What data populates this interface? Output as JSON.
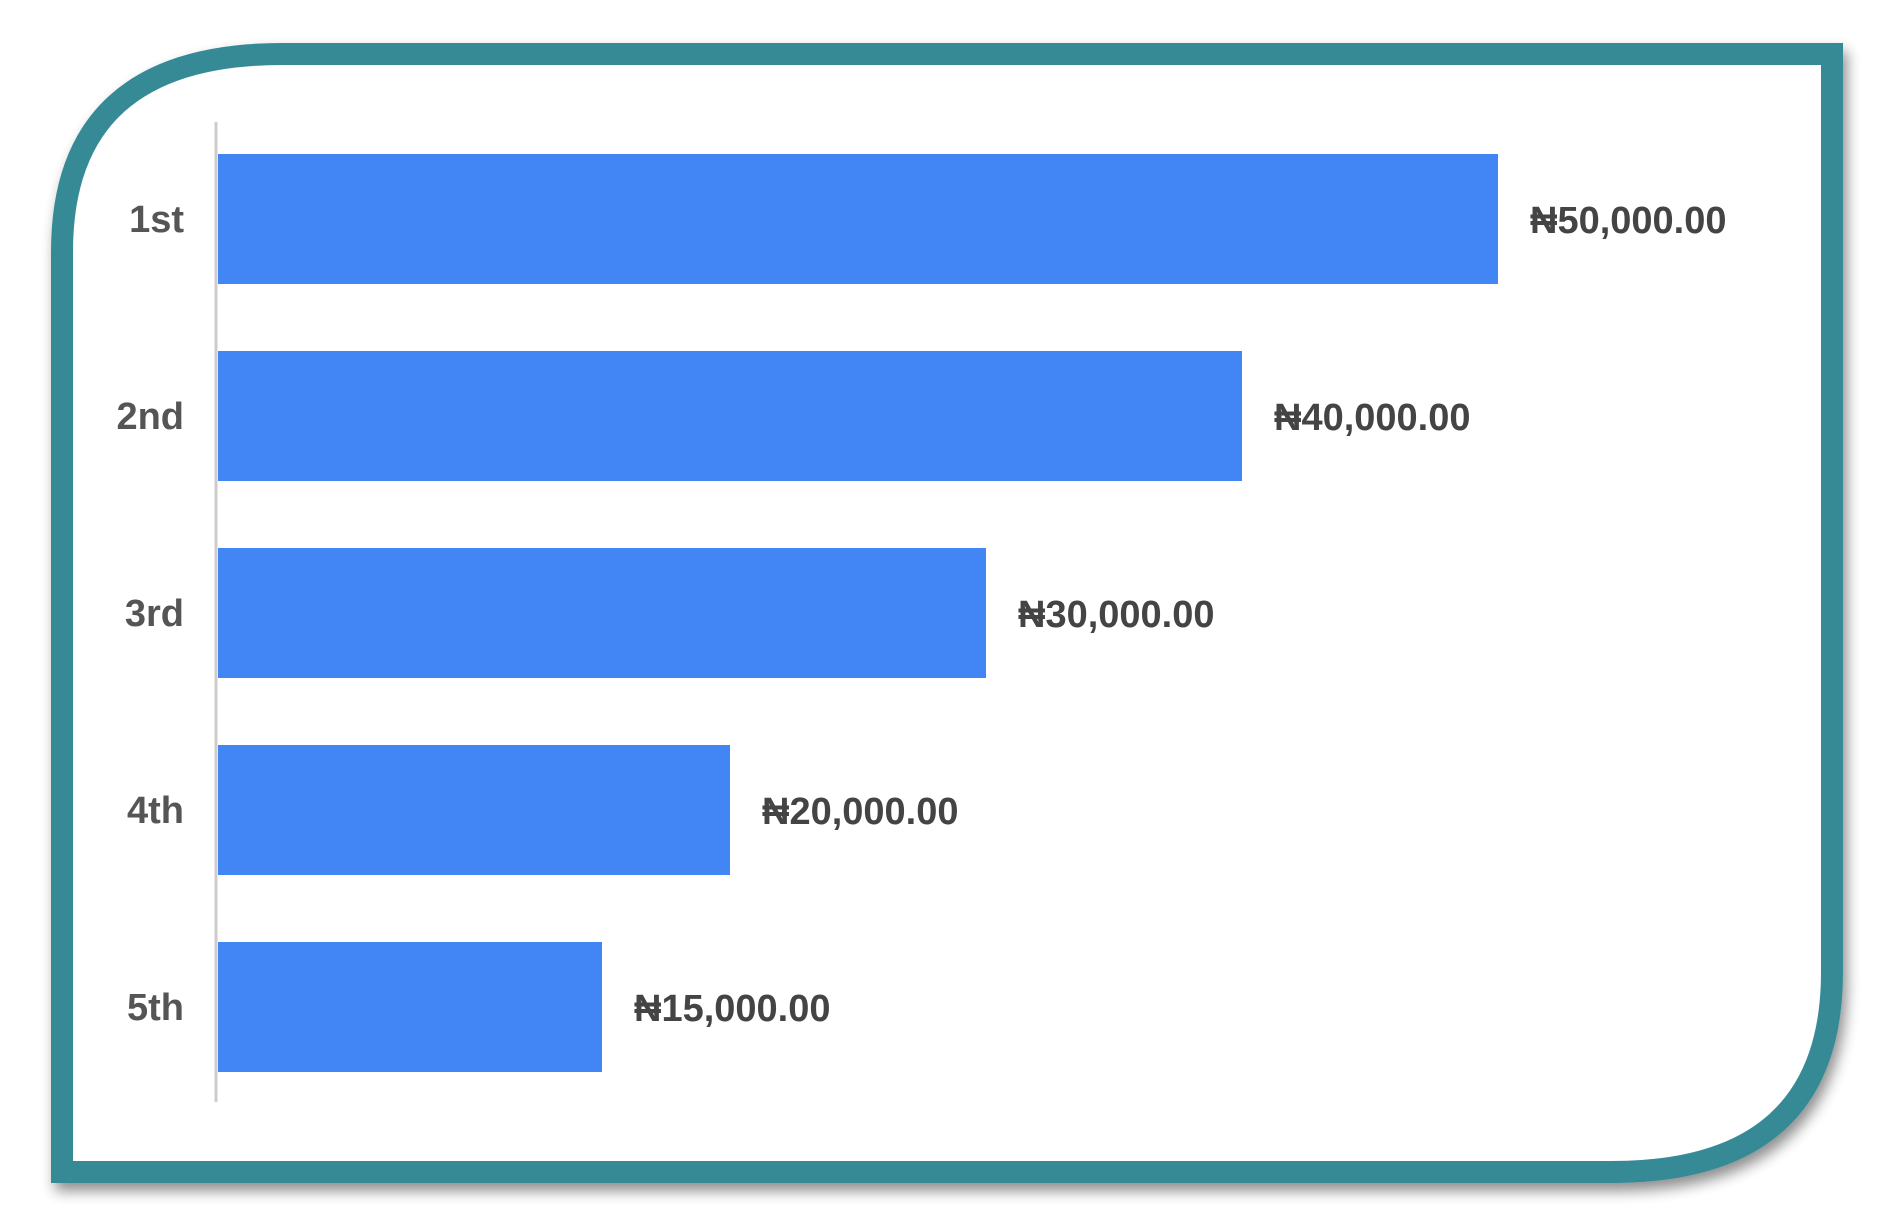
{
  "frame": {
    "border_color": "#348a96",
    "background": "#ffffff"
  },
  "chart_data": {
    "type": "bar",
    "orientation": "horizontal",
    "categories": [
      "1st",
      "2nd",
      "3rd",
      "4th",
      "5th"
    ],
    "values": [
      50000,
      40000,
      30000,
      20000,
      15000
    ],
    "value_labels": [
      "₦50,000.00",
      "₦40,000.00",
      "₦30,000.00",
      "₦20,000.00",
      "₦15,000.00"
    ],
    "bar_color": "#4285f4",
    "xlim": [
      0,
      50000
    ],
    "title": "",
    "xlabel": "",
    "ylabel": "",
    "grid": false,
    "legend": "none"
  }
}
